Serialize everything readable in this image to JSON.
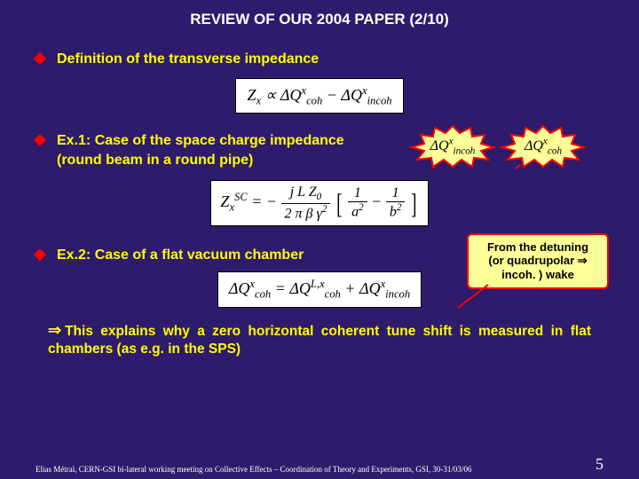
{
  "colors": {
    "background": "#2f1b6b",
    "bullet_diamond": "#ff0000",
    "bullet_text": "#ffff00",
    "title_text": "#ffffff",
    "equation_bg": "#ffffff",
    "equation_text": "#000000",
    "callout_bg": "#ffff99",
    "callout_border": "#ff0000",
    "footer_text": "#ffffff"
  },
  "fonts": {
    "body": "Arial",
    "math": "Times New Roman",
    "title_size_pt": 17,
    "bullet_size_pt": 16,
    "conclusion_size_pt": 15.5,
    "footer_size_pt": 9
  },
  "title": "REVIEW OF OUR 2004 PAPER (2/10)",
  "bullets": {
    "b1": "Definition of the transverse impedance",
    "b2_line1": "Ex.1: Case of the space charge impedance",
    "b2_line2": "(round beam in a round pipe)",
    "b3": "Ex.2: Case of a flat vacuum chamber"
  },
  "equations": {
    "eq1_html": "Z<sub>x</sub> &prop; &Delta;Q<sup>x</sup><sub>coh</sub> &minus; &Delta;Q<sup>x</sup><sub>incoh</sub>",
    "eq2_html": "Z<sub>x</sub><sup>SC</sup> = &minus; <span class='frac'><span class='num'>j L Z<sub>0</sub></span><span class='den'>2 &pi; &beta; &gamma;<sup>2</sup></span></span> <span class='bigbr'>[</span> <span class='frac'><span class='num'>1</span><span class='den'>a<sup>2</sup></span></span> &minus; <span class='frac'><span class='num'>1</span><span class='den'>b<sup>2</sup></span></span> <span class='bigbr'>]</span>",
    "eq3_html": "&Delta;Q<sup>x</sup><sub>coh</sub> = &Delta;Q<sup>L,x</sup><sub>coh</sub> + &Delta;Q<sup>x</sup><sub>incoh</sub>"
  },
  "callouts": {
    "c1_html": "&Delta;Q<sup>x</sup><sub>incoh</sub>",
    "c2_html": "&Delta;Q<sup>x</sup><sub>coh</sub>",
    "explain_line1": "From the detuning",
    "explain_line2": "(or quadrupolar ⇒",
    "explain_line3": "incoh. ) wake"
  },
  "conclusion_html": "⇒  This explains why a zero horizontal coherent tune shift is measured in flat chambers (as e.g. in the SPS)",
  "footer": {
    "text": "Elias Métral, CERN-GSI bi-lateral working meeting on Collective Effects – Coordination of Theory and Experiments, GSI, 30-31/03/06",
    "page": "5"
  }
}
